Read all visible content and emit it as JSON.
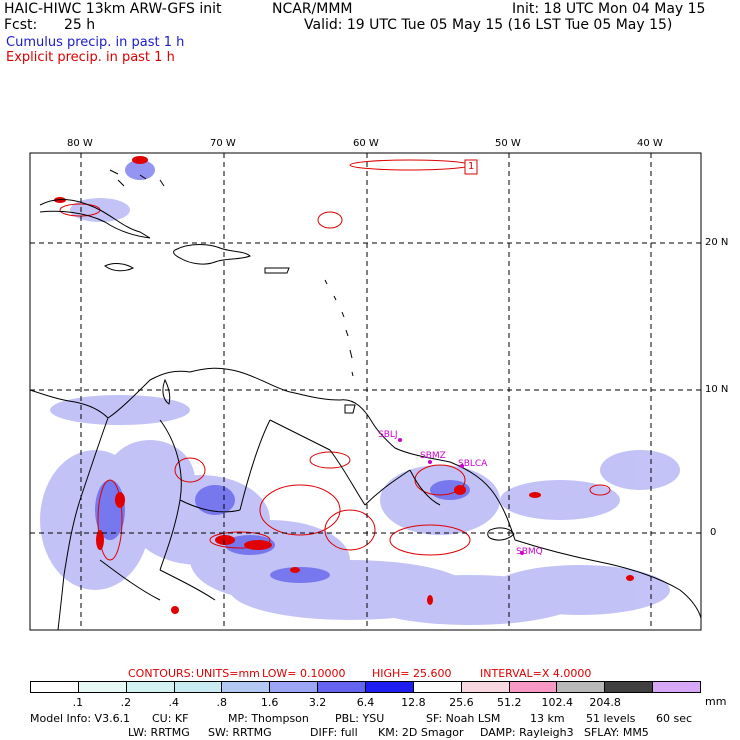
{
  "header": {
    "model_title": "HAIC-HIWC 13km ARW-GFS init",
    "org": "NCAR/MMM",
    "init": "Init: 18 UTC Mon 04 May 15",
    "fcst_label": "Fcst:",
    "fcst_value": "25 h",
    "valid": "Valid: 19 UTC Tue 05 May 15 (16 LST Tue 05 May 15)",
    "legend_cumulus": "Cumulus precip. in past 1 h",
    "legend_explicit": "Explicit precip. in past 1 h"
  },
  "colors": {
    "cumulus": "#1a1acc",
    "explicit": "#dd0000",
    "station": "#cc00cc",
    "contour_line": "#dd0000",
    "coast": "#000000"
  },
  "map": {
    "lon_labels": [
      "80 W",
      "70 W",
      "60 W",
      "50 W",
      "40 W"
    ],
    "lat_labels": [
      "20 N",
      "10 N",
      "0"
    ],
    "stations": [
      "SBLJ",
      "SBMZ",
      "SBLCA",
      "SBMQ"
    ],
    "box_label": "1"
  },
  "contours": {
    "label": "CONTOURS:",
    "units": "UNITS=mm",
    "low": "LOW= 0.10000",
    "high": "HIGH= 25.600",
    "interval": "INTERVAL=X 4.0000"
  },
  "scale": {
    "unit": "mm",
    "colors": [
      "#ffffff",
      "#e8f8f4",
      "#d4f2f2",
      "#c8ecf0",
      "#b4c8f4",
      "#9ca4f4",
      "#6464f0",
      "#1e1ef0",
      "#fcfcfc",
      "#f8d8e0",
      "#f898c4",
      "#b8b8b8",
      "#404040",
      "#d8a8f8"
    ],
    "labels": [
      ".1",
      ".2",
      ".4",
      ".8",
      "1.6",
      "3.2",
      "6.4",
      "12.8",
      "25.6",
      "51.2",
      "102.4",
      "204.8"
    ]
  },
  "model_info": {
    "line1": [
      "Model Info: V3.6.1",
      "CU: KF",
      "MP: Thompson",
      "PBL: YSU",
      "SF: Noah LSM",
      "13 km",
      "51 levels",
      "60 sec"
    ],
    "line2": [
      "LW: RRTMG",
      "SW: RRTMG",
      "DIFF: full",
      "KM: 2D Smagor",
      "DAMP: Rayleigh3",
      "SFLAY: MM5"
    ]
  }
}
